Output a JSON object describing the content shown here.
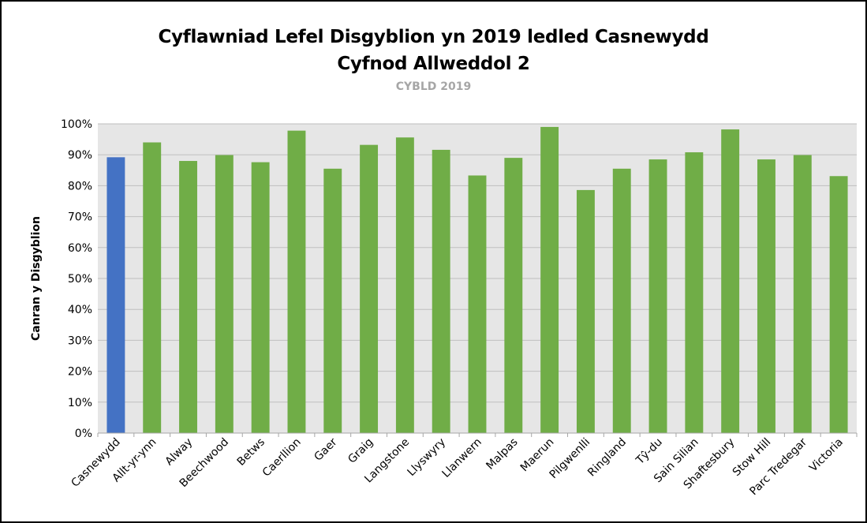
{
  "chart_data": {
    "type": "bar",
    "title": "Cyflawniad Lefel Disgyblion yn 2019 ledled Casnewydd",
    "title_line2": "Cyfnod Allweddol 2",
    "subtitle": "CYBLD 2019",
    "ylabel": "Canran y Disgyblion",
    "xlabel": "",
    "ylim": [
      0,
      100
    ],
    "y_ticks": [
      "0%",
      "10%",
      "20%",
      "30%",
      "40%",
      "50%",
      "60%",
      "70%",
      "80%",
      "90%",
      "100%"
    ],
    "grid": true,
    "legend": "none",
    "categories": [
      "Casnewydd",
      "Allt-yr-ynn",
      "Alway",
      "Beechwood",
      "Betws",
      "Caerllion",
      "Gaer",
      "Graig",
      "Langstone",
      "Llyswyry",
      "Llanwern",
      "Malpas",
      "Maerun",
      "Pilgwenlli",
      "Ringland",
      "Tŷ-du",
      "Sain Silian",
      "Shaftesbury",
      "Stow Hill",
      "Parc Tredegar",
      "Victoria"
    ],
    "values": [
      89.2,
      94,
      88,
      89.9,
      87.6,
      97.8,
      85.5,
      93.2,
      95.6,
      91.6,
      83.3,
      89,
      99,
      78.6,
      85.5,
      88.5,
      90.8,
      98.2,
      88.5,
      89.9,
      83.1
    ],
    "colors": {
      "highlight": "#4472c4",
      "default": "#70ad47",
      "plot_background": "#e6e6e6",
      "gridline": "#bfbfbf"
    },
    "highlight_index": 0
  }
}
